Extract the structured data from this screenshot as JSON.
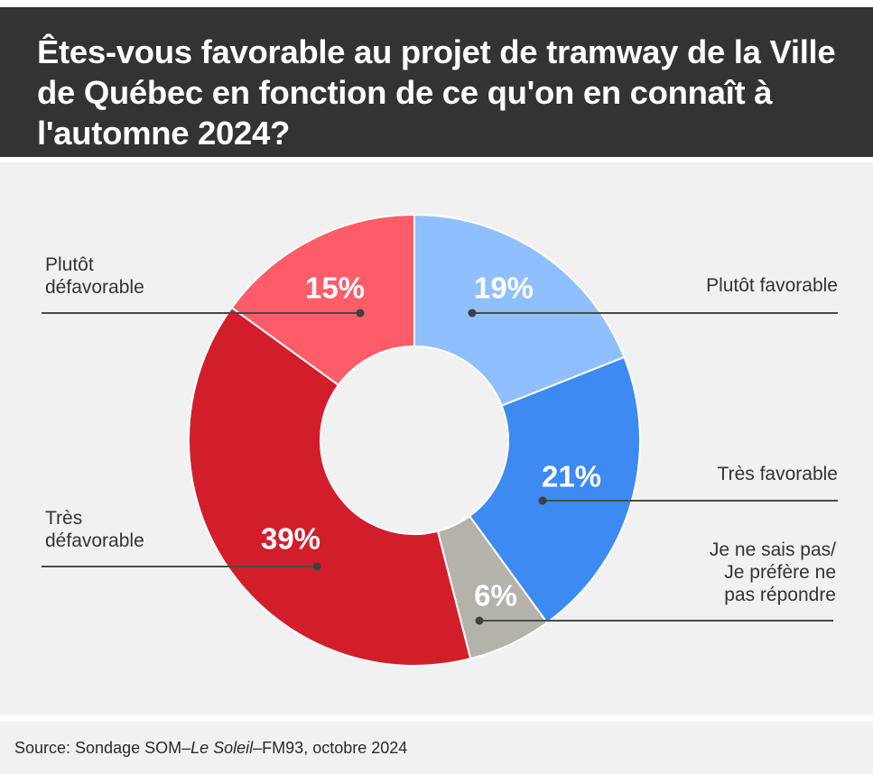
{
  "title": "Êtes-vous favorable au projet de tramway de la Ville de Québec en fonction de ce qu'on en connaît à l'automne 2024?",
  "source": {
    "prefix": "Source: Sondage SOM–",
    "italic": "Le Soleil",
    "suffix": "–FM93, octobre 2024"
  },
  "chart_data": {
    "type": "pie",
    "donut": true,
    "slices": [
      {
        "label": "Plutôt favorable",
        "value": 19,
        "display": "19%",
        "color": "#8fbfff"
      },
      {
        "label": "Très favorable",
        "value": 21,
        "display": "21%",
        "color": "#3d8af2"
      },
      {
        "label": "Je ne sais pas/ Je préfère ne pas répondre",
        "value": 6,
        "display": "6%",
        "color": "#b4b2aa"
      },
      {
        "label": "Très défavorable",
        "value": 39,
        "display": "39%",
        "color": "#d21e2b"
      },
      {
        "label": "Plutôt défavorable",
        "value": 15,
        "display": "15%",
        "color": "#fd5c68"
      }
    ]
  }
}
